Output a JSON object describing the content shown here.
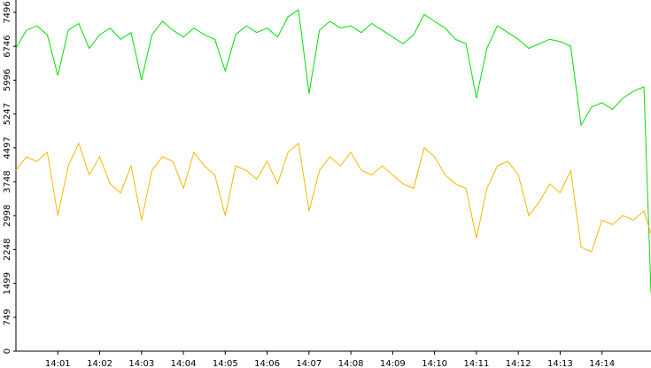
{
  "chart_data": {
    "type": "line",
    "x": [
      0,
      0.25,
      0.5,
      0.75,
      1,
      1.25,
      1.5,
      1.75,
      2,
      2.25,
      2.5,
      2.75,
      3,
      3.25,
      3.5,
      3.75,
      4,
      4.25,
      4.5,
      4.75,
      5,
      5.25,
      5.5,
      5.75,
      6,
      6.25,
      6.5,
      6.75,
      7,
      7.25,
      7.5,
      7.75,
      8,
      8.25,
      8.5,
      8.75,
      9,
      9.25,
      9.5,
      9.75,
      10,
      10.25,
      10.5,
      10.75,
      11,
      11.25,
      11.5,
      11.75,
      12,
      12.25,
      12.5,
      12.75,
      13,
      13.25,
      13.5,
      13.75,
      14,
      14.25,
      14.5,
      14.75,
      15,
      15.17
    ],
    "series": [
      {
        "color": "#00e000",
        "values": [
          6700,
          7100,
          7200,
          7000,
          6100,
          7100,
          7250,
          6700,
          7000,
          7150,
          6900,
          7050,
          6000,
          7000,
          7300,
          7100,
          6950,
          7150,
          7000,
          6900,
          6200,
          7000,
          7200,
          7050,
          7150,
          6950,
          7400,
          7550,
          5700,
          7100,
          7300,
          7150,
          7200,
          7050,
          7250,
          7100,
          6950,
          6800,
          7000,
          7450,
          7300,
          7150,
          6900,
          6800,
          5600,
          6700,
          7200,
          7050,
          6900,
          6700,
          6800,
          6900,
          6850,
          6750,
          5000,
          5400,
          5500,
          5350,
          5600,
          5750,
          5850,
          1300
        ]
      },
      {
        "color": "#f5b800",
        "values": [
          4000,
          4300,
          4200,
          4400,
          3000,
          4100,
          4600,
          3900,
          4300,
          3700,
          3500,
          4100,
          2900,
          4000,
          4300,
          4200,
          3600,
          4400,
          4100,
          3900,
          3000,
          4100,
          4000,
          3800,
          4200,
          3700,
          4400,
          4600,
          3100,
          4000,
          4300,
          4100,
          4400,
          4000,
          3900,
          4100,
          3900,
          3700,
          3600,
          4500,
          4300,
          3900,
          3700,
          3600,
          2500,
          3600,
          4100,
          4200,
          3900,
          3000,
          3300,
          3700,
          3500,
          4000,
          2300,
          2200,
          2900,
          2800,
          3000,
          2900,
          3100,
          2600
        ]
      }
    ],
    "xlim": [
      0,
      15.17
    ],
    "xticks": [
      {
        "value": 1,
        "label": "14:01"
      },
      {
        "value": 2,
        "label": "14:02"
      },
      {
        "value": 3,
        "label": "14:03"
      },
      {
        "value": 4,
        "label": "14:04"
      },
      {
        "value": 5,
        "label": "14:05"
      },
      {
        "value": 6,
        "label": "14:06"
      },
      {
        "value": 7,
        "label": "14:07"
      },
      {
        "value": 8,
        "label": "14:08"
      },
      {
        "value": 9,
        "label": "14:09"
      },
      {
        "value": 10,
        "label": "14:10"
      },
      {
        "value": 11,
        "label": "14:11"
      },
      {
        "value": 12,
        "label": "14:12"
      },
      {
        "value": 13,
        "label": "14:13"
      },
      {
        "value": 14,
        "label": "14:14"
      }
    ],
    "ylim": [
      0,
      7770
    ],
    "yticks": [
      0,
      749,
      1499,
      2248,
      2998,
      3748,
      4497,
      5247,
      5996,
      6746,
      7496
    ]
  }
}
